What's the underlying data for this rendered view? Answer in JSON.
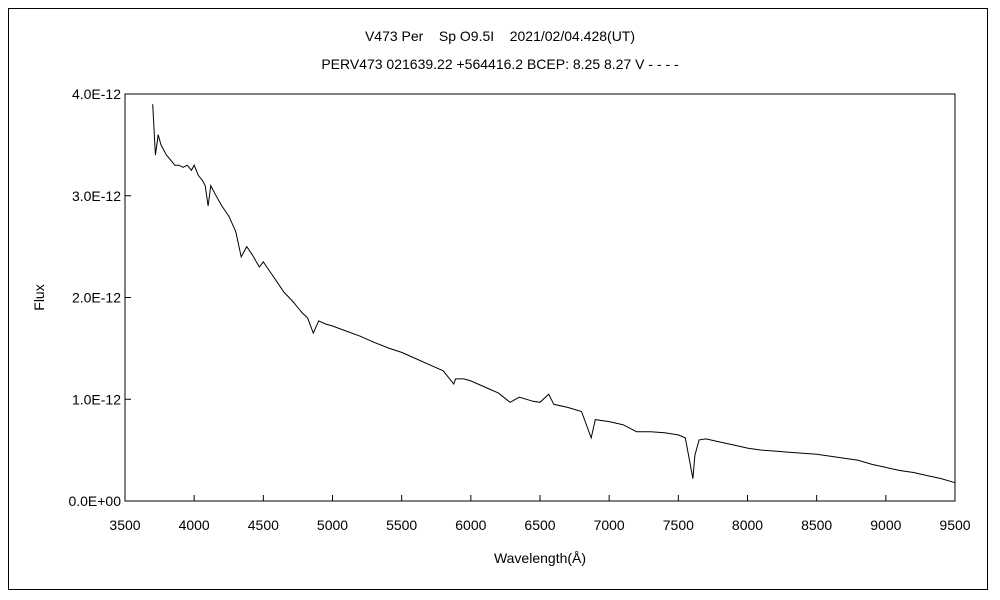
{
  "chart_data": {
    "type": "line",
    "title": "V473 Per    Sp O9.5I    2021/02/04.428(UT)",
    "subtitle": "PERV473 021639.22 +564416.2 BCEP: 8.25 8.27 V - - - -",
    "xlabel": "Wavelength(Å)",
    "ylabel": "Flux",
    "xlim": [
      3500,
      9500
    ],
    "ylim": [
      0,
      4e-12
    ],
    "x_ticks": [
      3500,
      4000,
      4500,
      5000,
      5500,
      6000,
      6500,
      7000,
      7500,
      8000,
      8500,
      9000,
      9500
    ],
    "x_tick_labels": [
      "3500",
      "4000",
      "4500",
      "5000",
      "5500",
      "6000",
      "6500",
      "7000",
      "7500",
      "8000",
      "8500",
      "9000",
      "9500"
    ],
    "y_ticks": [
      0,
      1e-12,
      2e-12,
      3e-12,
      4e-12
    ],
    "y_tick_labels": [
      "0.0E+00",
      "1.0E-12",
      "2.0E-12",
      "3.0E-12",
      "4.0E-12"
    ],
    "grid": false,
    "series": [
      {
        "x": [
          3700,
          3720,
          3740,
          3760,
          3780,
          3800,
          3830,
          3860,
          3890,
          3920,
          3950,
          3980,
          4000,
          4030,
          4060,
          4080,
          4101,
          4120,
          4150,
          4200,
          4250,
          4300,
          4340,
          4380,
          4420,
          4471,
          4500,
          4550,
          4600,
          4650,
          4686,
          4720,
          4780,
          4820,
          4861,
          4900,
          4950,
          5000,
          5100,
          5200,
          5300,
          5411,
          5500,
          5600,
          5700,
          5800,
          5876,
          5890,
          5950,
          6000,
          6100,
          6200,
          6284,
          6350,
          6450,
          6500,
          6563,
          6600,
          6700,
          6800,
          6870,
          6900,
          7000,
          7100,
          7200,
          7300,
          7400,
          7500,
          7550,
          7605,
          7620,
          7650,
          7700,
          7800,
          7900,
          8000,
          8100,
          8200,
          8300,
          8400,
          8500,
          8600,
          8700,
          8800,
          8900,
          9000,
          9100,
          9200,
          9300,
          9400,
          9500
        ],
        "values": [
          3.9e-12,
          3.4e-12,
          3.6e-12,
          3.5e-12,
          3.45e-12,
          3.4e-12,
          3.35e-12,
          3.3e-12,
          3.3e-12,
          3.28e-12,
          3.3e-12,
          3.25e-12,
          3.3e-12,
          3.2e-12,
          3.15e-12,
          3.1e-12,
          2.9e-12,
          3.1e-12,
          3.02e-12,
          2.9e-12,
          2.8e-12,
          2.65e-12,
          2.4e-12,
          2.5e-12,
          2.42e-12,
          2.3e-12,
          2.35e-12,
          2.25e-12,
          2.15e-12,
          2.05e-12,
          2e-12,
          1.95e-12,
          1.85e-12,
          1.8e-12,
          1.65e-12,
          1.77e-12,
          1.74e-12,
          1.72e-12,
          1.67e-12,
          1.62e-12,
          1.56e-12,
          1.5e-12,
          1.46e-12,
          1.4e-12,
          1.34e-12,
          1.28e-12,
          1.15e-12,
          1.2e-12,
          1.2e-12,
          1.18e-12,
          1.12e-12,
          1.06e-12,
          9.7e-13,
          1.02e-12,
          9.8e-13,
          9.7e-13,
          1.05e-12,
          9.5e-13,
          9.2e-13,
          8.8e-13,
          6.2e-13,
          8e-13,
          7.8e-13,
          7.5e-13,
          6.8e-13,
          6.8e-13,
          6.7e-13,
          6.5e-13,
          6.2e-13,
          2.2e-13,
          4.5e-13,
          6e-13,
          6.1e-13,
          5.8e-13,
          5.5e-13,
          5.2e-13,
          5e-13,
          4.9e-13,
          4.8e-13,
          4.7e-13,
          4.6e-13,
          4.4e-13,
          4.2e-13,
          4e-13,
          3.6e-13,
          3.3e-13,
          3e-13,
          2.8e-13,
          2.5e-13,
          2.2e-13,
          1.8e-13
        ],
        "color": "#000000"
      }
    ]
  }
}
